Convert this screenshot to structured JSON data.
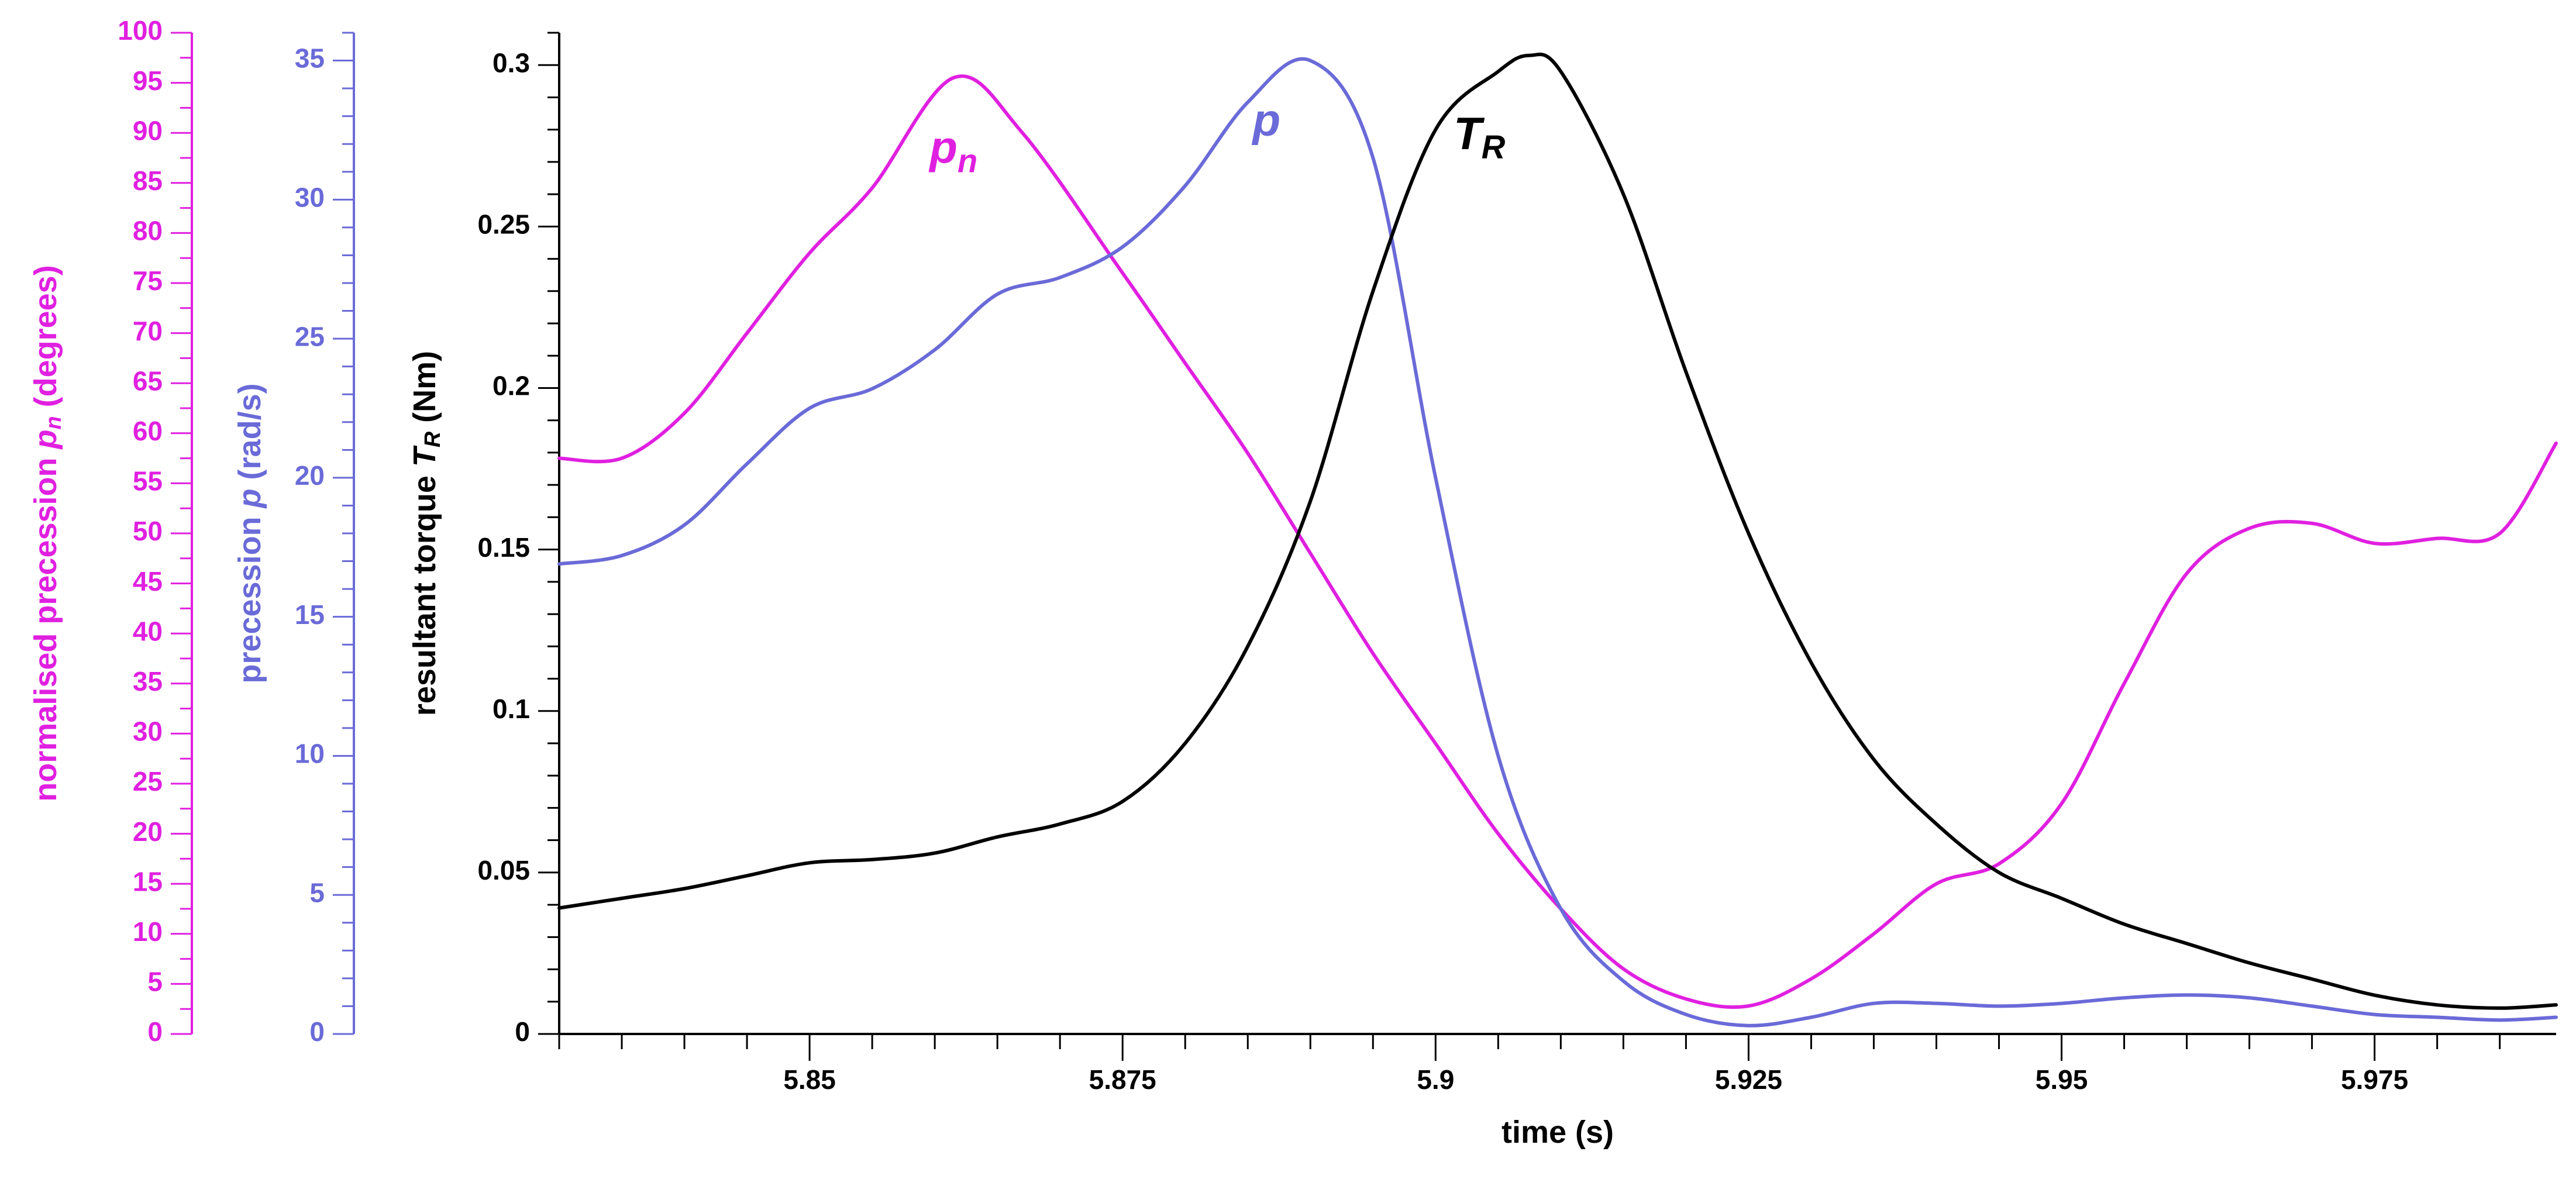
{
  "colors": {
    "pn": "#e020e0",
    "p": "#6a6ad8",
    "tr": "#000000",
    "axis": "#000000"
  },
  "chart_data": {
    "type": "line",
    "x": {
      "label": "time (s)",
      "range": [
        5.83,
        5.9895
      ],
      "ticks": [
        5.85,
        5.875,
        5.9,
        5.925,
        5.95,
        5.975
      ],
      "tick_labels": [
        "5.85",
        "5.875",
        "5.9",
        "5.925",
        "5.95",
        "5.975"
      ],
      "minor_step": 0.005
    },
    "axes": {
      "tr": {
        "label_prefix": "resultant torque ",
        "label_symbol": "T",
        "label_sub": "R",
        "label_suffix": " (Nm)",
        "range": [
          0,
          0.31
        ],
        "ticks": [
          0,
          0.05,
          0.1,
          0.15,
          0.2,
          0.25,
          0.3
        ],
        "tick_labels": [
          "0",
          "0.05",
          "0.1",
          "0.15",
          "0.2",
          "0.25",
          "0.3"
        ],
        "minor_step": 0.01
      },
      "p": {
        "label_prefix": "precession ",
        "label_symbol": "p",
        "label_suffix": " (rad/s)",
        "range": [
          0,
          36
        ],
        "ticks": [
          0,
          5,
          10,
          15,
          20,
          25,
          30,
          35
        ],
        "tick_labels": [
          "0",
          "5",
          "10",
          "15",
          "20",
          "25",
          "30",
          "35"
        ],
        "minor_step": 1
      },
      "pn": {
        "label_prefix": "normalised precession ",
        "label_symbol": "p",
        "label_sub": "n",
        "label_suffix": " (degrees)",
        "range": [
          0,
          100
        ],
        "ticks": [
          0,
          5,
          10,
          15,
          20,
          25,
          30,
          35,
          40,
          45,
          50,
          55,
          60,
          65,
          70,
          75,
          80,
          85,
          90,
          95,
          100
        ],
        "tick_labels": [
          "0",
          "5",
          "10",
          "15",
          "20",
          "25",
          "30",
          "35",
          "40",
          "45",
          "50",
          "55",
          "60",
          "65",
          "70",
          "75",
          "80",
          "85",
          "90",
          "95",
          "100"
        ],
        "minor_step": 2.5
      }
    },
    "series": [
      {
        "name": "pn",
        "label": "p",
        "label_sub": "n",
        "axis": "pn",
        "label_at": [
          5.8615,
          87
        ],
        "points": [
          [
            5.83,
            57.5
          ],
          [
            5.835,
            57.5
          ],
          [
            5.84,
            62
          ],
          [
            5.845,
            70
          ],
          [
            5.85,
            78
          ],
          [
            5.855,
            84.5
          ],
          [
            5.8615,
            95.5
          ],
          [
            5.867,
            90
          ],
          [
            5.875,
            76
          ],
          [
            5.88,
            67
          ],
          [
            5.885,
            58
          ],
          [
            5.89,
            48
          ],
          [
            5.895,
            38
          ],
          [
            5.9,
            29
          ],
          [
            5.905,
            20
          ],
          [
            5.91,
            12.5
          ],
          [
            5.915,
            6.5
          ],
          [
            5.92,
            3.5
          ],
          [
            5.925,
            2.8
          ],
          [
            5.93,
            5.5
          ],
          [
            5.935,
            10
          ],
          [
            5.94,
            15
          ],
          [
            5.945,
            17
          ],
          [
            5.95,
            23
          ],
          [
            5.955,
            35
          ],
          [
            5.96,
            46
          ],
          [
            5.965,
            50.5
          ],
          [
            5.97,
            51
          ],
          [
            5.975,
            49
          ],
          [
            5.98,
            49.5
          ],
          [
            5.985,
            50
          ],
          [
            5.9895,
            59
          ]
        ]
      },
      {
        "name": "p",
        "label": "p",
        "axis": "p",
        "label_at": [
          5.8865,
          32.3
        ],
        "points": [
          [
            5.83,
            16.9
          ],
          [
            5.835,
            17.2
          ],
          [
            5.84,
            18.3
          ],
          [
            5.845,
            20.5
          ],
          [
            5.85,
            22.5
          ],
          [
            5.855,
            23.2
          ],
          [
            5.86,
            24.6
          ],
          [
            5.865,
            26.6
          ],
          [
            5.87,
            27.2
          ],
          [
            5.875,
            28.3
          ],
          [
            5.88,
            30.5
          ],
          [
            5.885,
            33.5
          ],
          [
            5.89,
            35
          ],
          [
            5.895,
            31.5
          ],
          [
            5.9,
            20
          ],
          [
            5.905,
            10
          ],
          [
            5.91,
            4.5
          ],
          [
            5.915,
            1.9
          ],
          [
            5.92,
            0.7
          ],
          [
            5.925,
            0.3
          ],
          [
            5.93,
            0.6
          ],
          [
            5.935,
            1.1
          ],
          [
            5.94,
            1.1
          ],
          [
            5.945,
            1.0
          ],
          [
            5.95,
            1.1
          ],
          [
            5.955,
            1.3
          ],
          [
            5.96,
            1.4
          ],
          [
            5.965,
            1.3
          ],
          [
            5.97,
            1.0
          ],
          [
            5.975,
            0.7
          ],
          [
            5.98,
            0.6
          ],
          [
            5.985,
            0.5
          ],
          [
            5.9895,
            0.6
          ]
        ]
      },
      {
        "name": "tr",
        "label": "T",
        "label_sub": "R",
        "axis": "tr",
        "label_at": [
          5.9035,
          0.274
        ],
        "points": [
          [
            5.83,
            0.039
          ],
          [
            5.835,
            0.042
          ],
          [
            5.84,
            0.045
          ],
          [
            5.845,
            0.049
          ],
          [
            5.85,
            0.053
          ],
          [
            5.855,
            0.054
          ],
          [
            5.86,
            0.056
          ],
          [
            5.865,
            0.061
          ],
          [
            5.87,
            0.065
          ],
          [
            5.875,
            0.072
          ],
          [
            5.88,
            0.09
          ],
          [
            5.885,
            0.12
          ],
          [
            5.89,
            0.165
          ],
          [
            5.895,
            0.23
          ],
          [
            5.9,
            0.28
          ],
          [
            5.905,
            0.298
          ],
          [
            5.9075,
            0.303
          ],
          [
            5.91,
            0.298
          ],
          [
            5.915,
            0.26
          ],
          [
            5.92,
            0.205
          ],
          [
            5.925,
            0.155
          ],
          [
            5.93,
            0.115
          ],
          [
            5.935,
            0.085
          ],
          [
            5.94,
            0.065
          ],
          [
            5.945,
            0.05
          ],
          [
            5.95,
            0.042
          ],
          [
            5.955,
            0.034
          ],
          [
            5.96,
            0.028
          ],
          [
            5.965,
            0.022
          ],
          [
            5.97,
            0.017
          ],
          [
            5.975,
            0.012
          ],
          [
            5.98,
            0.009
          ],
          [
            5.985,
            0.008
          ],
          [
            5.9895,
            0.009
          ]
        ]
      }
    ]
  }
}
